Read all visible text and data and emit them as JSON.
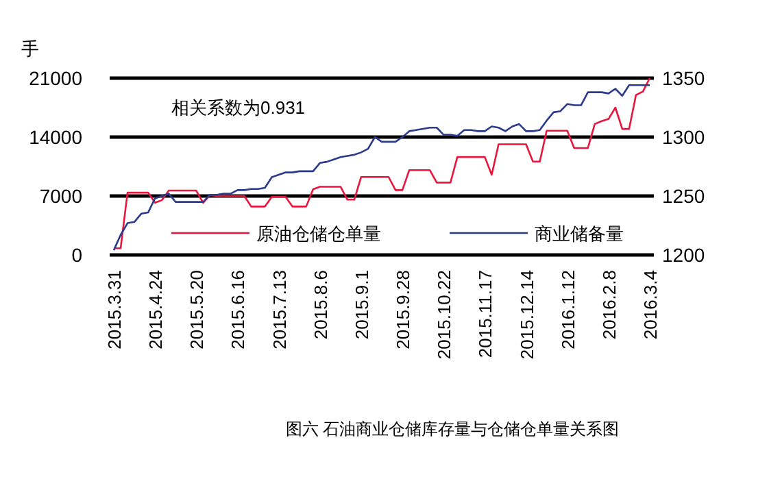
{
  "chart_data": {
    "type": "line",
    "ylabel": "手",
    "ylim": [
      0,
      21000
    ],
    "yticks": [
      0,
      7000,
      14000,
      21000
    ],
    "y2lim": [
      1200,
      1350
    ],
    "y2ticks": [
      1200,
      1250,
      1300,
      1350
    ],
    "grid": "y",
    "legend": "bottom",
    "marker": "none",
    "categories": [
      "2015.3.31",
      null,
      null,
      null,
      null,
      null,
      "2015.4.24",
      null,
      null,
      null,
      null,
      null,
      "2015.5.20",
      null,
      null,
      null,
      null,
      null,
      "2015.6.16",
      null,
      null,
      null,
      null,
      null,
      "2015.7.13",
      null,
      null,
      null,
      null,
      null,
      "2015.8.6",
      null,
      null,
      null,
      null,
      null,
      "2015.9.1",
      null,
      null,
      null,
      null,
      null,
      "2015.9.28",
      null,
      null,
      null,
      null,
      null,
      "2015.10.22",
      null,
      null,
      null,
      null,
      null,
      "2015.11.17",
      null,
      null,
      null,
      null,
      null,
      "2015.12.14",
      null,
      null,
      null,
      null,
      null,
      "2016.1.12",
      null,
      null,
      null,
      null,
      null,
      "2016.2.8",
      null,
      null,
      null,
      null,
      null,
      "2016.3.4"
    ],
    "series": [
      {
        "name": "原油仓储仓单量",
        "color": "#e8163c",
        "values": [
          800,
          800,
          7400,
          7400,
          7400,
          7400,
          6200,
          6500,
          7650,
          7650,
          7650,
          7650,
          7650,
          6200,
          7100,
          7000,
          7000,
          7000,
          7000,
          7000,
          5750,
          5750,
          5750,
          6900,
          6900,
          6900,
          5750,
          5750,
          5750,
          7800,
          8100,
          8100,
          8100,
          8100,
          6570,
          6570,
          9260,
          9260,
          9260,
          9260,
          9260,
          7700,
          7700,
          10070,
          10070,
          10070,
          10070,
          8600,
          8600,
          8600,
          11630,
          11630,
          11630,
          11630,
          11630,
          9530,
          13140,
          13140,
          13140,
          13140,
          13140,
          11090,
          11090,
          14750,
          14750,
          14750,
          14750,
          12700,
          12700,
          12700,
          15560,
          15890,
          16150,
          17500,
          14970,
          14970,
          19000,
          19400,
          21000
        ]
      },
      {
        "name": "商业储备量",
        "color": "#2b3a8a",
        "axis": "y2",
        "values": [
          1204,
          1217,
          1227,
          1228,
          1235,
          1236,
          1248,
          1250,
          1252,
          1245,
          1245,
          1245,
          1245,
          1245,
          1251,
          1251,
          1252,
          1252,
          1255,
          1255,
          1256,
          1256,
          1257,
          1266,
          1268,
          1270,
          1270,
          1271,
          1271,
          1271,
          1278,
          1279,
          1281,
          1283,
          1284,
          1285,
          1287,
          1290,
          1300,
          1296,
          1296,
          1296,
          1300,
          1305,
          1306,
          1307,
          1308,
          1308,
          1302,
          1302,
          1301,
          1306,
          1306,
          1305,
          1305,
          1309,
          1308,
          1305,
          1309,
          1311,
          1305,
          1305,
          1306,
          1314,
          1321,
          1322,
          1328,
          1327,
          1327,
          1338,
          1338,
          1338,
          1337,
          1341,
          1335,
          1344,
          1344,
          1344,
          1344
        ]
      }
    ],
    "annotations": [
      "相关系数为0.931",
      "图六  石油商业仓储库存量与仓储仓单量关系图"
    ]
  }
}
